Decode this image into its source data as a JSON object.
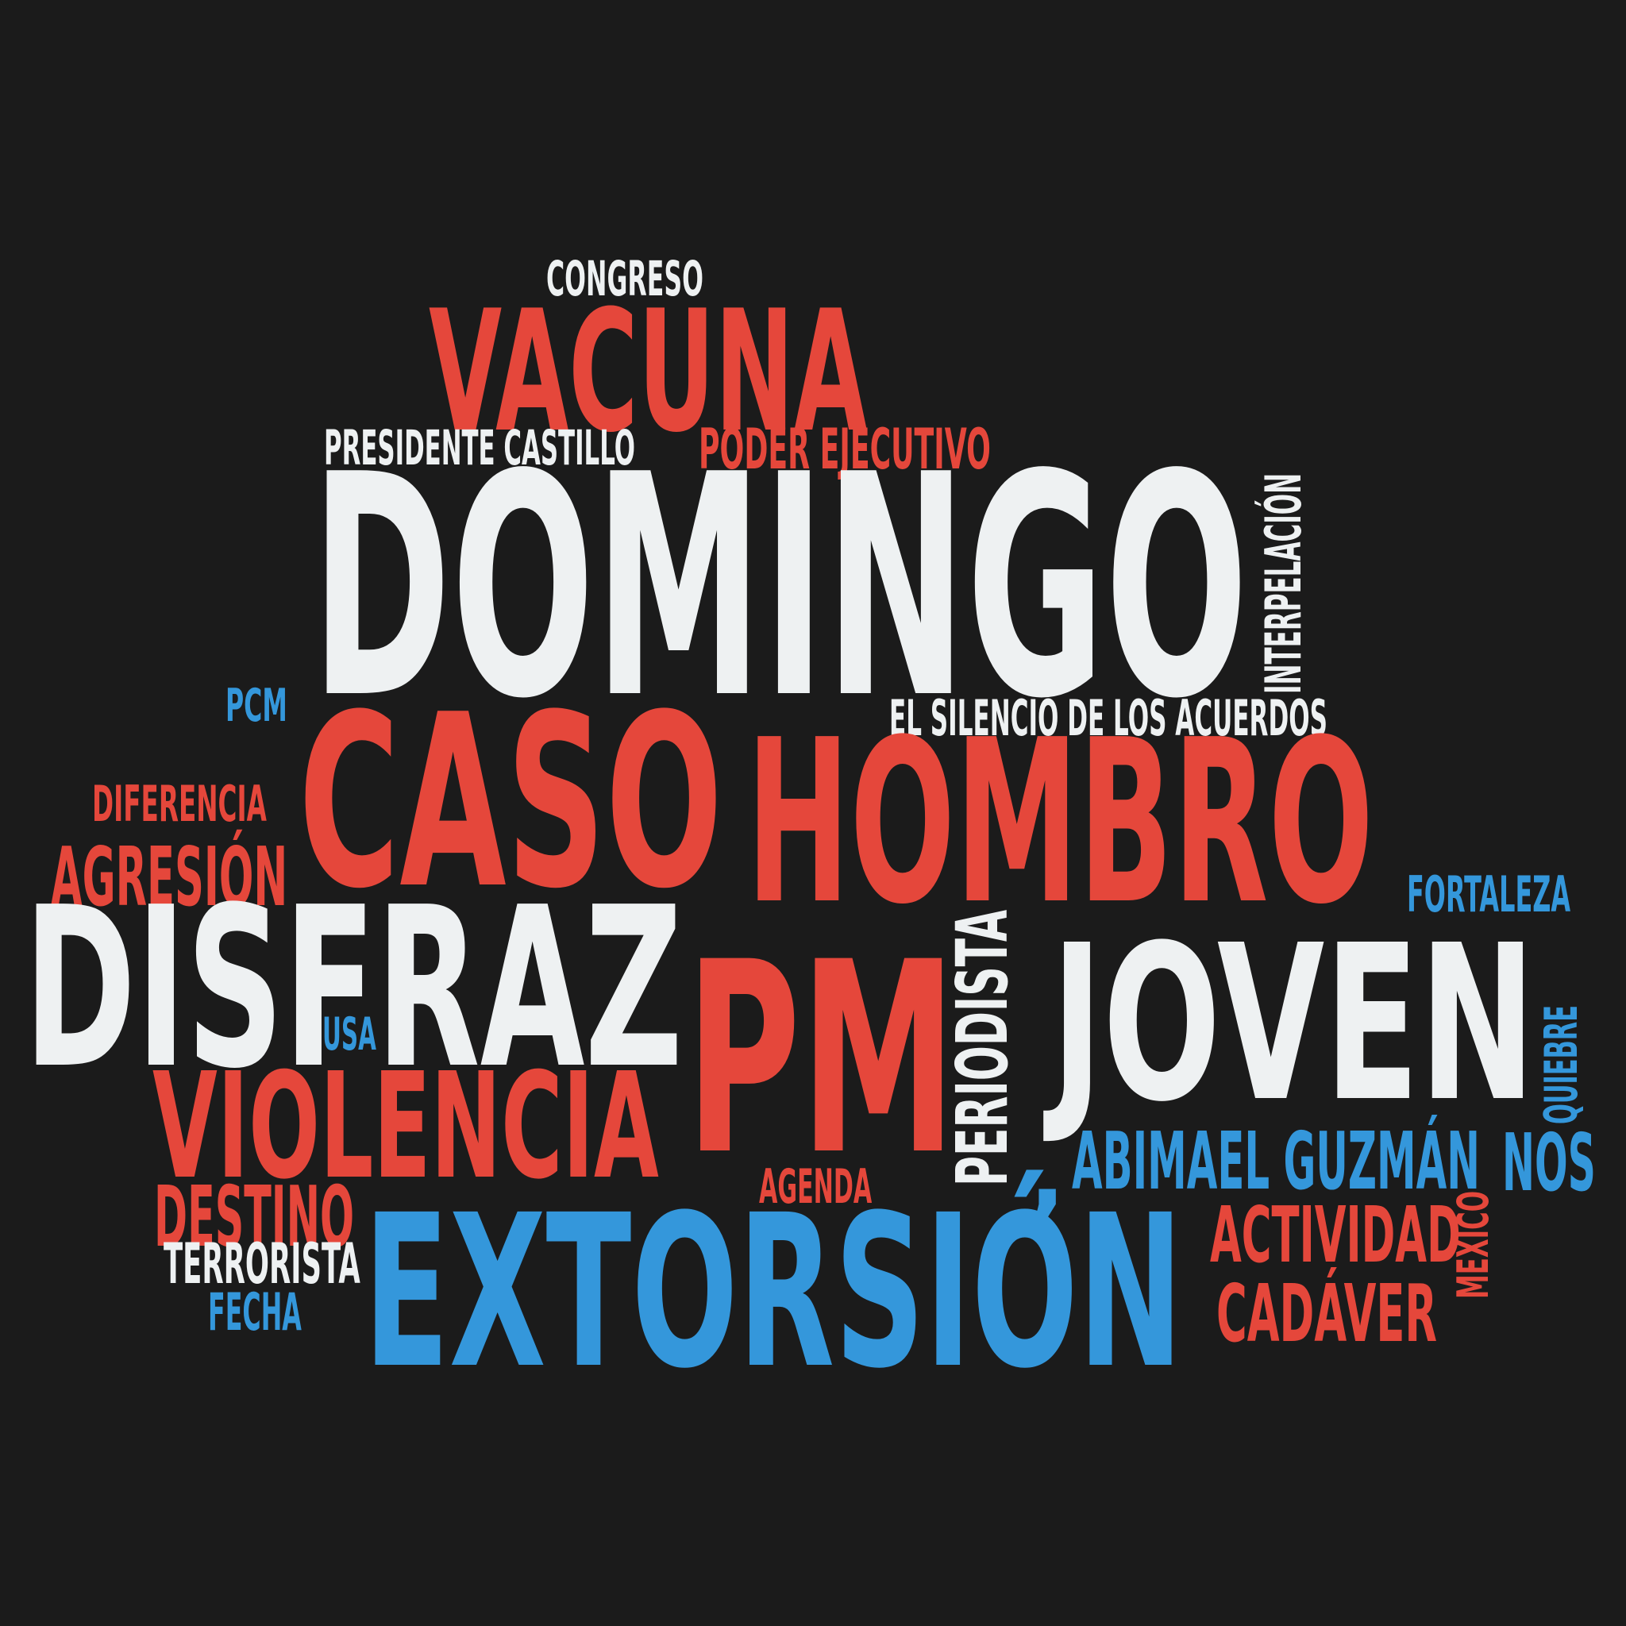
{
  "palette": {
    "background": "#1b1b1b",
    "red": "#e5473b",
    "white": "#eef1f2",
    "blue": "#3497db"
  },
  "words": [
    {
      "id": "congreso",
      "text": "CONGRESO",
      "color": "white"
    },
    {
      "id": "vacuna",
      "text": "VACUNA",
      "color": "red"
    },
    {
      "id": "presidente-castillo",
      "text": "PRESIDENTE CASTILLO",
      "color": "white"
    },
    {
      "id": "poder-ejecutivo",
      "text": "PODER EJECUTIVO",
      "color": "red"
    },
    {
      "id": "domingo",
      "text": "DOMINGO",
      "color": "white"
    },
    {
      "id": "interpelacion",
      "text": "INTERPELACIÓN",
      "color": "white",
      "vertical": true
    },
    {
      "id": "pcm",
      "text": "PCM",
      "color": "blue"
    },
    {
      "id": "el-silencio",
      "text": "EL SILENCIO DE LOS ACUERDOS",
      "color": "white"
    },
    {
      "id": "caso",
      "text": "CASO",
      "color": "red"
    },
    {
      "id": "hombro",
      "text": "HOMBRO",
      "color": "red"
    },
    {
      "id": "diferencia",
      "text": "DIFERENCIA",
      "color": "red"
    },
    {
      "id": "agresion",
      "text": "AGRESIÓN",
      "color": "red"
    },
    {
      "id": "fortaleza",
      "text": "FORTALEZA",
      "color": "blue"
    },
    {
      "id": "disfraz",
      "text": "DISFRAZ",
      "color": "white"
    },
    {
      "id": "pm",
      "text": "PM",
      "color": "red"
    },
    {
      "id": "periodista",
      "text": "PERIODISTA",
      "color": "white",
      "vertical": true
    },
    {
      "id": "joven",
      "text": "JOVEN",
      "color": "white"
    },
    {
      "id": "usa",
      "text": "USA",
      "color": "blue"
    },
    {
      "id": "quiebre",
      "text": "QUIEBRE",
      "color": "blue",
      "vertical": true
    },
    {
      "id": "violencia",
      "text": "VIOLENCIA",
      "color": "red"
    },
    {
      "id": "comma",
      "text": ",",
      "color": "blue"
    },
    {
      "id": "abimael-guzman",
      "text": "ABIMAEL GUZMÁN",
      "color": "blue"
    },
    {
      "id": "nos",
      "text": "NOS",
      "color": "blue"
    },
    {
      "id": "agenda",
      "text": "AGENDA",
      "color": "red"
    },
    {
      "id": "destino",
      "text": "DESTINO",
      "color": "red"
    },
    {
      "id": "actividad",
      "text": "ACTIVIDAD",
      "color": "red"
    },
    {
      "id": "mexico",
      "text": "MEXICO",
      "color": "red",
      "vertical": true
    },
    {
      "id": "terrorista",
      "text": "TERRORISTA",
      "color": "white"
    },
    {
      "id": "extorsion",
      "text": "EXTORSIÓN",
      "color": "blue"
    },
    {
      "id": "cadaver",
      "text": "CADÁVER",
      "color": "red"
    },
    {
      "id": "fecha",
      "text": "FECHA",
      "color": "blue"
    }
  ]
}
